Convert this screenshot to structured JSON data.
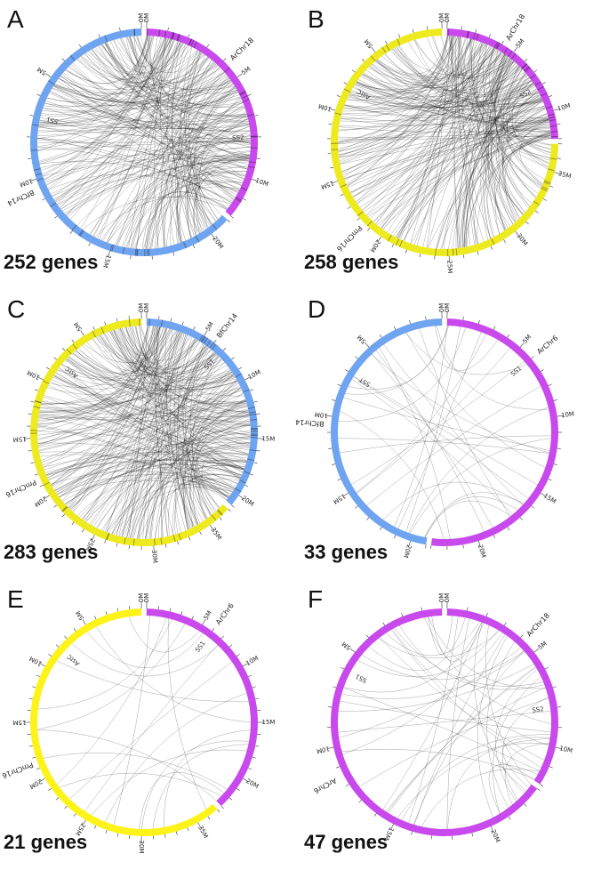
{
  "panels": [
    {
      "letter": "A",
      "gene_count": "252 genes",
      "link_count": 252,
      "chromosomes": [
        {
          "name": "BfChr14",
          "color": "#6fa4f0",
          "size_mb": 21,
          "label_side": "left"
        },
        {
          "name": "ArChr18",
          "color": "#c84aec",
          "size_mb": 12,
          "label_side": "right"
        }
      ],
      "dense_markers": true,
      "small_labels": [
        {
          "text": "SS2",
          "chrom": 1,
          "pos_mb": 8
        },
        {
          "text": "SS1",
          "chrom": 0,
          "pos_mb": 7
        }
      ]
    },
    {
      "letter": "B",
      "gene_count": "258 genes",
      "link_count": 258,
      "chromosomes": [
        {
          "name": "PmChr16",
          "color": "#eeea20",
          "size_mb": 37,
          "label_side": "left"
        },
        {
          "name": "ArChr18",
          "color": "#c84aec",
          "size_mb": 12,
          "label_side": "right"
        }
      ],
      "dense_markers": true,
      "small_labels": [
        {
          "text": "SS2",
          "chrom": 1,
          "pos_mb": 8
        },
        {
          "text": "AstC",
          "chrom": 0,
          "pos_mb": 8
        }
      ]
    },
    {
      "letter": "C",
      "gene_count": "283 genes",
      "link_count": 283,
      "chromosomes": [
        {
          "name": "PmChr16",
          "color": "#eeea20",
          "size_mb": 37,
          "label_side": "left"
        },
        {
          "name": "BfChr14",
          "color": "#6fa4f0",
          "size_mb": 21,
          "label_side": "right"
        }
      ],
      "dense_markers": true,
      "small_labels": [
        {
          "text": "SST",
          "chrom": 1,
          "pos_mb": 7
        },
        {
          "text": "AstC",
          "chrom": 0,
          "pos_mb": 8
        }
      ]
    },
    {
      "letter": "D",
      "gene_count": "33 genes",
      "link_count": 33,
      "chromosomes": [
        {
          "name": "BfChr14",
          "color": "#6fa4f0",
          "size_mb": 21,
          "label_side": "left"
        },
        {
          "name": "ArChr6",
          "color": "#c84aec",
          "size_mb": 23,
          "label_side": "right"
        }
      ],
      "dense_markers": false,
      "small_labels": [
        {
          "text": "SS1",
          "chrom": 1,
          "pos_mb": 6
        },
        {
          "text": "SST",
          "chrom": 0,
          "pos_mb": 7
        }
      ]
    },
    {
      "letter": "E",
      "gene_count": "21 genes",
      "link_count": 21,
      "chromosomes": [
        {
          "name": "PmChr16",
          "color": "#fdf31a",
          "size_mb": 37,
          "label_side": "left"
        },
        {
          "name": "ArChr6",
          "color": "#c84aec",
          "size_mb": 23,
          "label_side": "right"
        }
      ],
      "dense_markers": false,
      "small_labels": [
        {
          "text": "SS1",
          "chrom": 1,
          "pos_mb": 6
        },
        {
          "text": "AstC",
          "chrom": 0,
          "pos_mb": 8
        }
      ]
    },
    {
      "letter": "F",
      "gene_count": "47 genes",
      "link_count": 47,
      "chromosomes": [
        {
          "name": "ArChr6",
          "color": "#c84aec",
          "size_mb": 23,
          "label_side": "left"
        },
        {
          "name": "ArChr18",
          "color": "#c84aec",
          "size_mb": 12,
          "label_side": "right"
        }
      ],
      "dense_markers": false,
      "small_labels": [
        {
          "text": "SS2",
          "chrom": 1,
          "pos_mb": 8
        },
        {
          "text": "SS1",
          "chrom": 0,
          "pos_mb": 6
        }
      ]
    }
  ]
}
